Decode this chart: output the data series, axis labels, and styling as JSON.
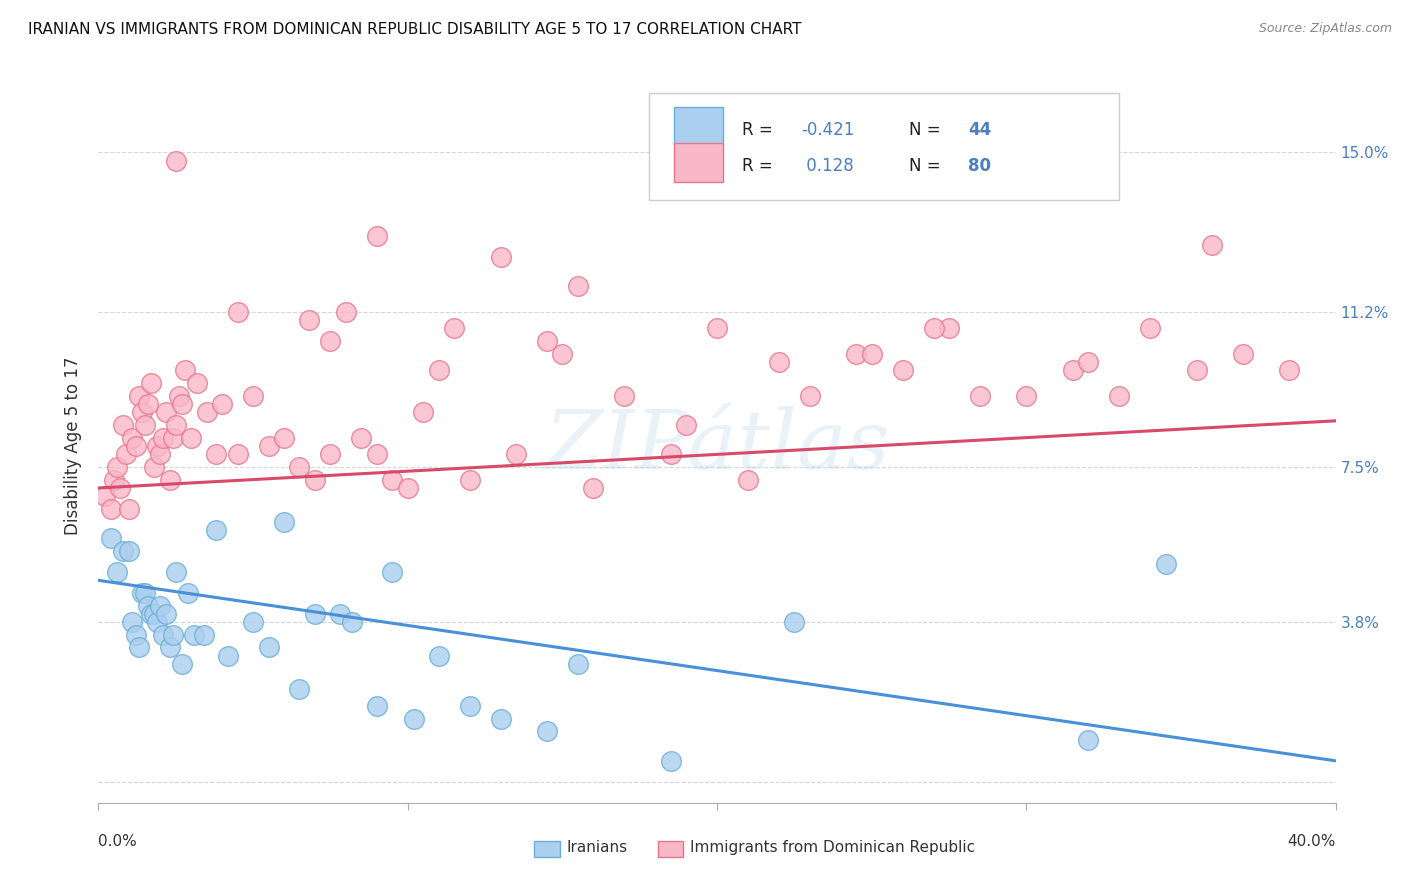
{
  "title": "IRANIAN VS IMMIGRANTS FROM DOMINICAN REPUBLIC DISABILITY AGE 5 TO 17 CORRELATION CHART",
  "source": "Source: ZipAtlas.com",
  "ylabel": "Disability Age 5 to 17",
  "ytick_values": [
    0.0,
    3.8,
    7.5,
    11.2,
    15.0
  ],
  "ytick_labels_right": [
    "",
    "3.8%",
    "7.5%",
    "11.2%",
    "15.0%"
  ],
  "xlim": [
    0.0,
    40.0
  ],
  "ylim": [
    -0.5,
    16.5
  ],
  "legend_r_iranian": "-0.421",
  "legend_n_iranian": "44",
  "legend_r_dominican": "0.128",
  "legend_n_dominican": "80",
  "color_iranian_fill": "#aacfef",
  "color_iranian_edge": "#6aaed6",
  "color_dominican_fill": "#f9b8c8",
  "color_dominican_edge": "#e8758a",
  "color_line_iranian": "#4a90d9",
  "color_line_dominican": "#d94a6a",
  "color_text_blue": "#4a7fc1",
  "color_text_darkblue": "#2c4f8a",
  "background_color": "#ffffff",
  "grid_color": "#cccccc",
  "watermark": "ZIPátlas",
  "iranian_x": [
    0.4,
    0.6,
    0.8,
    1.0,
    1.1,
    1.2,
    1.3,
    1.4,
    1.5,
    1.6,
    1.7,
    1.8,
    1.9,
    2.0,
    2.1,
    2.2,
    2.3,
    2.4,
    2.5,
    2.7,
    2.9,
    3.1,
    3.4,
    3.8,
    4.2,
    5.0,
    5.5,
    6.0,
    6.5,
    7.0,
    7.8,
    8.2,
    9.0,
    9.5,
    10.2,
    11.0,
    12.0,
    13.0,
    14.5,
    15.5,
    18.5,
    22.5,
    32.0,
    34.5
  ],
  "iranian_y": [
    5.8,
    5.0,
    5.5,
    5.5,
    3.8,
    3.5,
    3.2,
    4.5,
    4.5,
    4.2,
    4.0,
    4.0,
    3.8,
    4.2,
    3.5,
    4.0,
    3.2,
    3.5,
    5.0,
    2.8,
    4.5,
    3.5,
    3.5,
    6.0,
    3.0,
    3.8,
    3.2,
    6.2,
    2.2,
    4.0,
    4.0,
    3.8,
    1.8,
    5.0,
    1.5,
    3.0,
    1.8,
    1.5,
    1.2,
    2.8,
    0.5,
    3.8,
    1.0,
    5.2
  ],
  "dominican_x": [
    0.2,
    0.4,
    0.5,
    0.6,
    0.7,
    0.8,
    0.9,
    1.0,
    1.1,
    1.2,
    1.3,
    1.4,
    1.5,
    1.6,
    1.7,
    1.8,
    1.9,
    2.0,
    2.1,
    2.2,
    2.3,
    2.4,
    2.5,
    2.6,
    2.7,
    2.8,
    3.0,
    3.2,
    3.5,
    3.8,
    4.0,
    4.5,
    5.0,
    5.5,
    6.0,
    6.5,
    7.0,
    7.5,
    8.5,
    9.0,
    9.5,
    10.0,
    11.0,
    12.0,
    13.5,
    15.0,
    16.0,
    17.0,
    19.0,
    21.0,
    22.0,
    23.0,
    24.5,
    26.0,
    27.5,
    28.5,
    30.0,
    31.5,
    33.0,
    34.0,
    35.5,
    37.0,
    38.5,
    2.5,
    9.0,
    13.0,
    15.5,
    27.0,
    36.0,
    4.5,
    7.5,
    6.8,
    8.0,
    14.5,
    20.0,
    25.0,
    32.0,
    10.5,
    11.5,
    18.5
  ],
  "dominican_y": [
    6.8,
    6.5,
    7.2,
    7.5,
    7.0,
    8.5,
    7.8,
    6.5,
    8.2,
    8.0,
    9.2,
    8.8,
    8.5,
    9.0,
    9.5,
    7.5,
    8.0,
    7.8,
    8.2,
    8.8,
    7.2,
    8.2,
    8.5,
    9.2,
    9.0,
    9.8,
    8.2,
    9.5,
    8.8,
    7.8,
    9.0,
    7.8,
    9.2,
    8.0,
    8.2,
    7.5,
    7.2,
    7.8,
    8.2,
    7.8,
    7.2,
    7.0,
    9.8,
    7.2,
    7.8,
    10.2,
    7.0,
    9.2,
    8.5,
    7.2,
    10.0,
    9.2,
    10.2,
    9.8,
    10.8,
    9.2,
    9.2,
    9.8,
    9.2,
    10.8,
    9.8,
    10.2,
    9.8,
    14.8,
    13.0,
    12.5,
    11.8,
    10.8,
    12.8,
    11.2,
    10.5,
    11.0,
    11.2,
    10.5,
    10.8,
    10.2,
    10.0,
    8.8,
    10.8,
    7.8
  ],
  "iran_line_x": [
    0.0,
    40.0
  ],
  "iran_line_y": [
    4.8,
    0.5
  ],
  "dom_line_x": [
    0.0,
    40.0
  ],
  "dom_line_y": [
    7.0,
    8.6
  ]
}
